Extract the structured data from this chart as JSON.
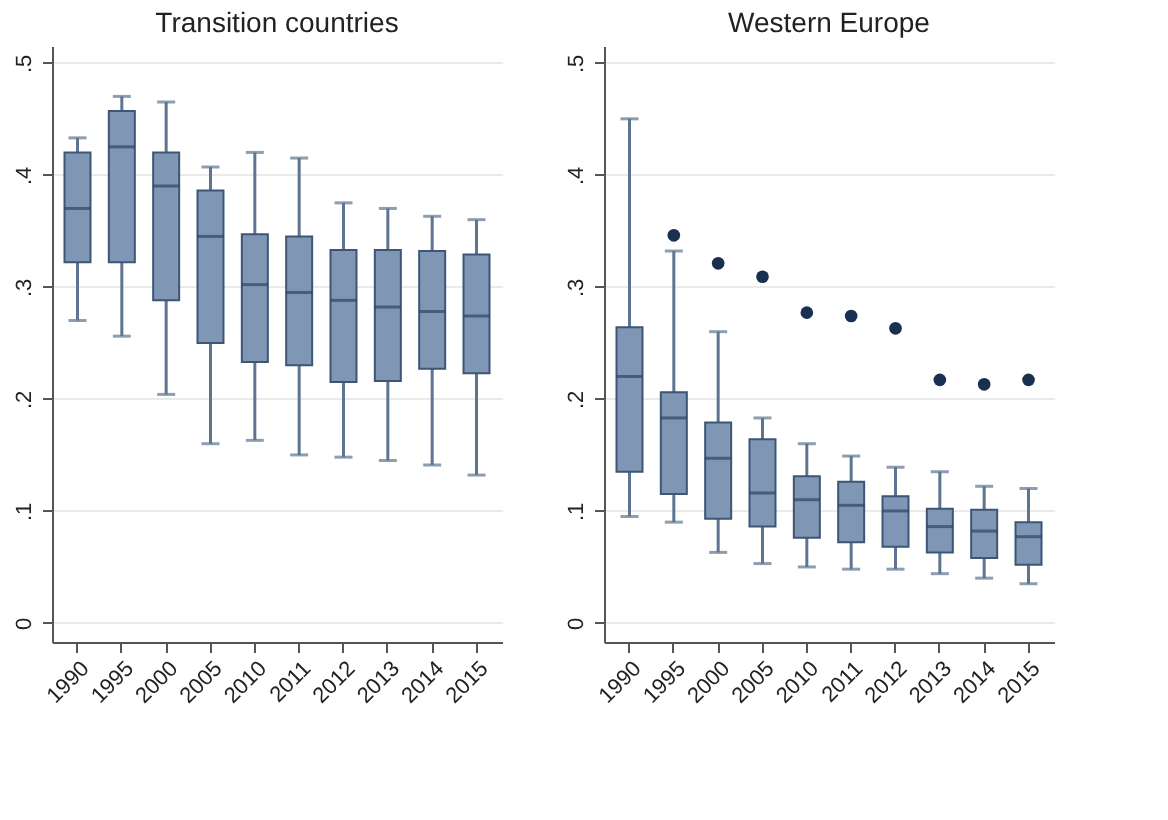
{
  "chart_data": [
    {
      "type": "box",
      "title": "Transition countries",
      "categories": [
        "1990",
        "1995",
        "2000",
        "2005",
        "2010",
        "2011",
        "2012",
        "2013",
        "2014",
        "2015"
      ],
      "ylim": [
        -0.017,
        0.515
      ],
      "yticks": [
        {
          "value": 0,
          "label": "0"
        },
        {
          "value": 0.1,
          "label": ".1"
        },
        {
          "value": 0.2,
          "label": ".2"
        },
        {
          "value": 0.3,
          "label": ".3"
        },
        {
          "value": 0.4,
          "label": ".4"
        },
        {
          "value": 0.5,
          "label": ".5"
        }
      ],
      "grid": "y",
      "series": [
        {
          "color": "#7f97b5",
          "boxes": [
            {
              "low": 0.27,
              "q1": 0.322,
              "median": 0.37,
              "q3": 0.42,
              "high": 0.433
            },
            {
              "low": 0.256,
              "q1": 0.322,
              "median": 0.425,
              "q3": 0.457,
              "high": 0.47
            },
            {
              "low": 0.204,
              "q1": 0.288,
              "median": 0.39,
              "q3": 0.42,
              "high": 0.465
            },
            {
              "low": 0.16,
              "q1": 0.25,
              "median": 0.345,
              "q3": 0.386,
              "high": 0.407
            },
            {
              "low": 0.163,
              "q1": 0.233,
              "median": 0.302,
              "q3": 0.347,
              "high": 0.42
            },
            {
              "low": 0.15,
              "q1": 0.23,
              "median": 0.295,
              "q3": 0.345,
              "high": 0.415
            },
            {
              "low": 0.148,
              "q1": 0.215,
              "median": 0.288,
              "q3": 0.333,
              "high": 0.375
            },
            {
              "low": 0.145,
              "q1": 0.216,
              "median": 0.282,
              "q3": 0.333,
              "high": 0.37
            },
            {
              "low": 0.141,
              "q1": 0.227,
              "median": 0.278,
              "q3": 0.332,
              "high": 0.363
            },
            {
              "low": 0.132,
              "q1": 0.223,
              "median": 0.274,
              "q3": 0.329,
              "high": 0.36
            }
          ]
        }
      ]
    },
    {
      "type": "box",
      "title": "Western Europe",
      "categories": [
        "1990",
        "1995",
        "2000",
        "2005",
        "2010",
        "2011",
        "2012",
        "2013",
        "2014",
        "2015"
      ],
      "ylim": [
        -0.017,
        0.515
      ],
      "yticks": [
        {
          "value": 0,
          "label": "0"
        },
        {
          "value": 0.1,
          "label": ".1"
        },
        {
          "value": 0.2,
          "label": ".2"
        },
        {
          "value": 0.3,
          "label": ".3"
        },
        {
          "value": 0.4,
          "label": ".4"
        },
        {
          "value": 0.5,
          "label": ".5"
        }
      ],
      "grid": "y",
      "series": [
        {
          "color": "#7f97b5",
          "boxes": [
            {
              "low": 0.095,
              "q1": 0.135,
              "median": 0.22,
              "q3": 0.264,
              "high": 0.45
            },
            {
              "low": 0.09,
              "q1": 0.115,
              "median": 0.183,
              "q3": 0.206,
              "high": 0.332,
              "outliers": [
                0.346
              ]
            },
            {
              "low": 0.063,
              "q1": 0.093,
              "median": 0.147,
              "q3": 0.179,
              "high": 0.26,
              "outliers": [
                0.321
              ]
            },
            {
              "low": 0.053,
              "q1": 0.086,
              "median": 0.116,
              "q3": 0.164,
              "high": 0.183,
              "outliers": [
                0.309
              ]
            },
            {
              "low": 0.05,
              "q1": 0.076,
              "median": 0.11,
              "q3": 0.131,
              "high": 0.16,
              "outliers": [
                0.277
              ]
            },
            {
              "low": 0.048,
              "q1": 0.072,
              "median": 0.105,
              "q3": 0.126,
              "high": 0.149,
              "outliers": [
                0.274
              ]
            },
            {
              "low": 0.048,
              "q1": 0.068,
              "median": 0.1,
              "q3": 0.113,
              "high": 0.139,
              "outliers": [
                0.263
              ]
            },
            {
              "low": 0.044,
              "q1": 0.063,
              "median": 0.086,
              "q3": 0.102,
              "high": 0.135,
              "outliers": [
                0.217
              ]
            },
            {
              "low": 0.04,
              "q1": 0.058,
              "median": 0.082,
              "q3": 0.101,
              "high": 0.122,
              "outliers": [
                0.213
              ]
            },
            {
              "low": 0.035,
              "q1": 0.052,
              "median": 0.077,
              "q3": 0.09,
              "high": 0.12,
              "outliers": [
                0.217
              ]
            }
          ]
        }
      ]
    }
  ]
}
